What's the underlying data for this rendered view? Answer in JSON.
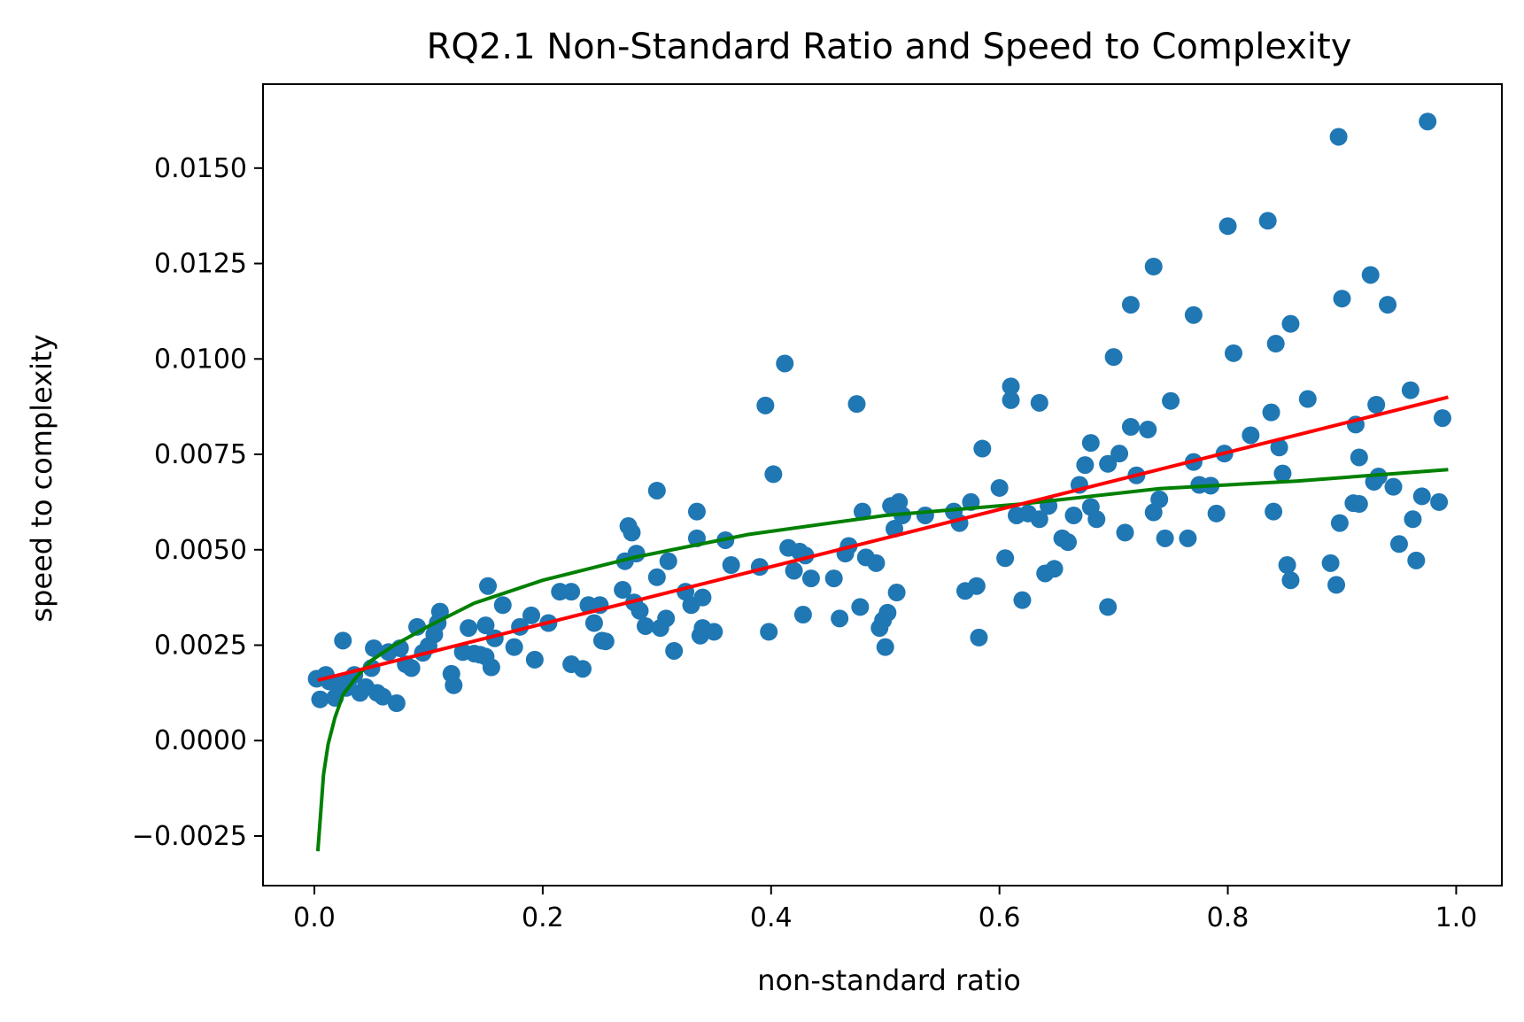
{
  "chart_data": {
    "type": "scatter",
    "title": "RQ2.1 Non-Standard Ratio and Speed to Complexity",
    "xlabel": "non-standard ratio",
    "ylabel": "speed to complexity",
    "xlim": [
      -0.045,
      1.04
    ],
    "ylim": [
      -0.0038,
      0.0172
    ],
    "xticks": [
      0.0,
      0.2,
      0.4,
      0.6,
      0.8,
      1.0
    ],
    "xtick_labels": [
      "0.0",
      "0.2",
      "0.4",
      "0.6",
      "0.8",
      "1.0"
    ],
    "yticks": [
      -0.0025,
      0.0,
      0.0025,
      0.005,
      0.0075,
      0.01,
      0.0125,
      0.015
    ],
    "ytick_labels": [
      "−0.0025",
      "0.0000",
      "0.0025",
      "0.0050",
      "0.0075",
      "0.0100",
      "0.0125",
      "0.0150"
    ],
    "grid": false,
    "colors": {
      "points": "#1f77b4",
      "linear_fit": "#ff0000",
      "log_fit": "#008000"
    },
    "series": [
      {
        "kind": "scatter",
        "x": [
          0.002,
          0.005,
          0.01,
          0.013,
          0.018,
          0.022,
          0.025,
          0.028,
          0.03,
          0.035,
          0.04,
          0.045,
          0.05,
          0.052,
          0.055,
          0.06,
          0.065,
          0.072,
          0.075,
          0.08,
          0.085,
          0.09,
          0.095,
          0.1,
          0.105,
          0.108,
          0.11,
          0.12,
          0.122,
          0.13,
          0.135,
          0.14,
          0.145,
          0.15,
          0.15,
          0.152,
          0.155,
          0.158,
          0.165,
          0.175,
          0.18,
          0.19,
          0.193,
          0.205,
          0.215,
          0.225,
          0.225,
          0.235,
          0.24,
          0.245,
          0.25,
          0.252,
          0.255,
          0.27,
          0.272,
          0.275,
          0.278,
          0.28,
          0.282,
          0.285,
          0.29,
          0.3,
          0.3,
          0.303,
          0.308,
          0.31,
          0.315,
          0.325,
          0.33,
          0.335,
          0.335,
          0.338,
          0.34,
          0.34,
          0.35,
          0.36,
          0.365,
          0.39,
          0.395,
          0.398,
          0.402,
          0.412,
          0.415,
          0.42,
          0.425,
          0.428,
          0.43,
          0.435,
          0.455,
          0.46,
          0.465,
          0.468,
          0.475,
          0.478,
          0.48,
          0.483,
          0.492,
          0.495,
          0.498,
          0.5,
          0.502,
          0.505,
          0.508,
          0.51,
          0.512,
          0.515,
          0.535,
          0.56,
          0.565,
          0.57,
          0.575,
          0.58,
          0.582,
          0.585,
          0.6,
          0.605,
          0.61,
          0.61,
          0.615,
          0.62,
          0.625,
          0.635,
          0.635,
          0.64,
          0.643,
          0.648,
          0.655,
          0.66,
          0.665,
          0.67,
          0.675,
          0.68,
          0.68,
          0.685,
          0.695,
          0.695,
          0.7,
          0.705,
          0.71,
          0.715,
          0.715,
          0.72,
          0.73,
          0.735,
          0.735,
          0.74,
          0.745,
          0.75,
          0.765,
          0.77,
          0.77,
          0.775,
          0.785,
          0.79,
          0.797,
          0.8,
          0.805,
          0.82,
          0.835,
          0.838,
          0.84,
          0.842,
          0.845,
          0.848,
          0.852,
          0.855,
          0.855,
          0.87,
          0.89,
          0.895,
          0.897,
          0.898,
          0.9,
          0.91,
          0.912,
          0.915,
          0.915,
          0.925,
          0.928,
          0.93,
          0.932,
          0.94,
          0.945,
          0.95,
          0.96,
          0.962,
          0.965,
          0.97,
          0.975,
          0.985,
          0.988,
          0.99
        ]
      },
      {
        "kind": "scatter-y",
        "y": [
          0.00162,
          0.00108,
          0.00172,
          0.00155,
          0.00112,
          0.00145,
          0.00262,
          0.00138,
          0.00158,
          0.00172,
          0.00125,
          0.0014,
          0.0019,
          0.00242,
          0.00125,
          0.00115,
          0.00232,
          0.00098,
          0.00242,
          0.002,
          0.0019,
          0.00298,
          0.0023,
          0.00248,
          0.00278,
          0.00308,
          0.00338,
          0.00175,
          0.00145,
          0.00232,
          0.00295,
          0.00228,
          0.00225,
          0.00302,
          0.0022,
          0.00405,
          0.00192,
          0.00268,
          0.00355,
          0.00245,
          0.00298,
          0.00328,
          0.00212,
          0.00308,
          0.0039,
          0.002,
          0.0039,
          0.00188,
          0.00355,
          0.00308,
          0.00355,
          0.00262,
          0.0026,
          0.00395,
          0.0047,
          0.00562,
          0.00545,
          0.00362,
          0.0049,
          0.0034,
          0.003,
          0.00655,
          0.00428,
          0.00295,
          0.0032,
          0.0047,
          0.00235,
          0.0039,
          0.00355,
          0.0053,
          0.006,
          0.00275,
          0.00375,
          0.00295,
          0.00285,
          0.00525,
          0.0046,
          0.00455,
          0.00878,
          0.00285,
          0.00698,
          0.00988,
          0.00505,
          0.00445,
          0.00495,
          0.0033,
          0.00485,
          0.00425,
          0.00425,
          0.0032,
          0.0049,
          0.0051,
          0.00882,
          0.0035,
          0.006,
          0.0048,
          0.00465,
          0.00295,
          0.00315,
          0.00245,
          0.00335,
          0.00615,
          0.00555,
          0.00388,
          0.00625,
          0.0059,
          0.0059,
          0.006,
          0.0057,
          0.00392,
          0.00625,
          0.00405,
          0.0027,
          0.00765,
          0.00662,
          0.00478,
          0.00928,
          0.00892,
          0.0059,
          0.00368,
          0.00595,
          0.00885,
          0.0058,
          0.00438,
          0.00615,
          0.0045,
          0.0053,
          0.0052,
          0.0059,
          0.0067,
          0.00722,
          0.00612,
          0.0078,
          0.0058,
          0.0035,
          0.00725,
          0.01005,
          0.00752,
          0.00545,
          0.00822,
          0.01142,
          0.00695,
          0.00815,
          0.01242,
          0.00598,
          0.00632,
          0.0053,
          0.0089,
          0.0053,
          0.01115,
          0.0073,
          0.0067,
          0.00668,
          0.00595,
          0.00752,
          0.01348,
          0.01015,
          0.008,
          0.01362,
          0.0086,
          0.006,
          0.0104,
          0.00768,
          0.007,
          0.0046,
          0.0042,
          0.01092,
          0.00895,
          0.00465,
          0.00408,
          0.01582,
          0.0057,
          0.01158,
          0.00622,
          0.00828,
          0.0062,
          0.00742,
          0.0122,
          0.00678,
          0.0088,
          0.00692,
          0.01142,
          0.00665,
          0.00515,
          0.00918,
          0.0058,
          0.00472,
          0.0064,
          0.01622,
          0.00625,
          0.00845
        ]
      },
      {
        "kind": "line",
        "x": [
          0.003,
          0.993
        ],
        "y": [
          0.00158,
          0.009
        ]
      },
      {
        "kind": "line",
        "x": [
          0.003,
          0.005,
          0.008,
          0.012,
          0.018,
          0.025,
          0.035,
          0.05,
          0.07,
          0.1,
          0.14,
          0.2,
          0.28,
          0.38,
          0.5,
          0.62,
          0.74,
          0.86,
          0.993
        ],
        "y": [
          -0.0029,
          -0.0021,
          -0.0009,
          -0.0001,
          0.0006,
          0.0012,
          0.0016,
          0.0021,
          0.0025,
          0.003,
          0.0036,
          0.0042,
          0.0048,
          0.0054,
          0.0059,
          0.0062,
          0.0066,
          0.0068,
          0.0071
        ]
      }
    ]
  }
}
